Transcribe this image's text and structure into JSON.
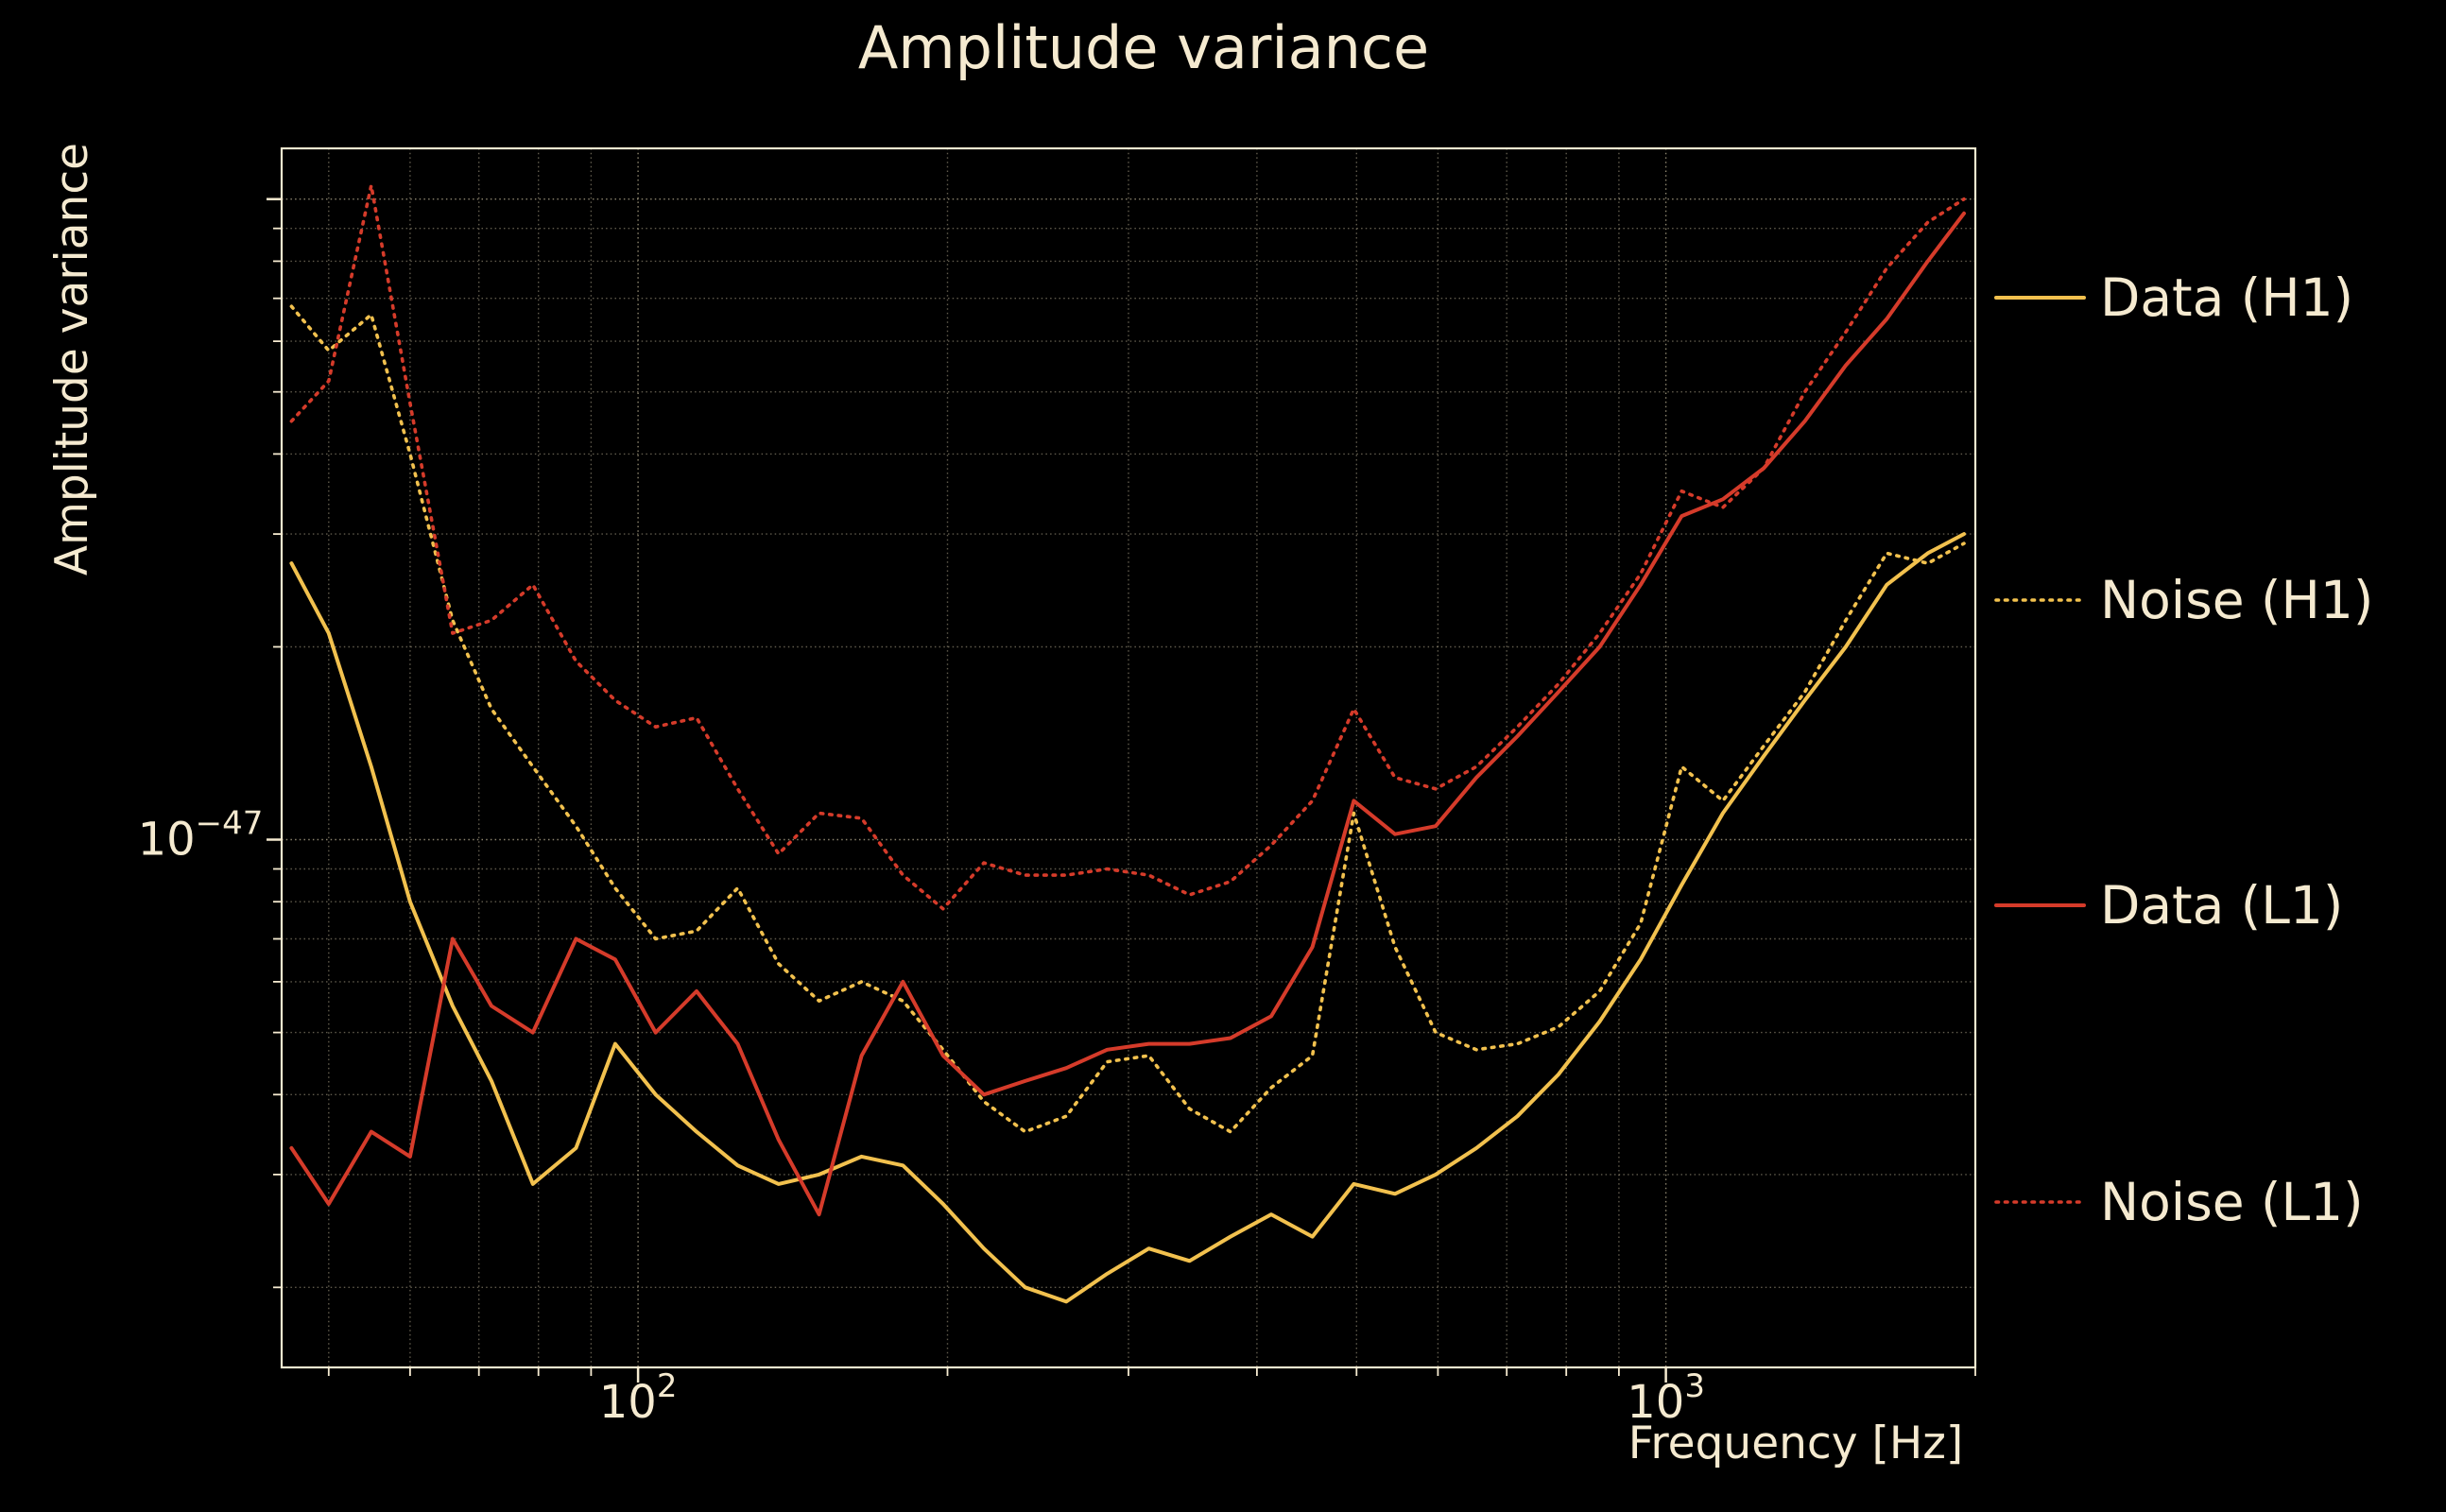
{
  "colors": {
    "background": "#000000",
    "text": "#f5ead0",
    "grid": "#d8cbaa",
    "gold": "#f2c14e",
    "red": "#d53b2a"
  },
  "chart_data": {
    "type": "line",
    "title": "Amplitude variance",
    "xlabel": "Frequency [Hz]",
    "ylabel": "Amplitude variance",
    "x_scale": "log",
    "y_scale": "log",
    "grid": "on",
    "legend_position": "right-outside",
    "xlim": [
      45,
      2000
    ],
    "ylim": [
      1.5e-48,
      1.2e-46
    ],
    "x_ticks": [
      {
        "value": 100,
        "mantissa": "10",
        "exp": "2"
      },
      {
        "value": 1000,
        "mantissa": "10",
        "exp": "3"
      }
    ],
    "y_ticks": [
      {
        "value": 1e-47,
        "mantissa": "10",
        "exp": "−47"
      }
    ],
    "value_scale": 1e-48,
    "x": [
      46,
      50,
      55,
      60,
      66,
      72,
      79,
      87,
      95,
      104,
      114,
      125,
      137,
      150,
      165,
      181,
      198,
      217,
      238,
      261,
      286,
      314,
      344,
      377,
      413,
      453,
      497,
      545,
      597,
      654,
      717,
      786,
      862,
      945,
      1036,
      1136,
      1245,
      1365,
      1496,
      1640,
      1798,
      1950
    ],
    "series": [
      {
        "name": "Data (H1)",
        "color": "gold",
        "style": "solid",
        "values": [
          27,
          21,
          13,
          8,
          5.5,
          4.2,
          2.9,
          3.3,
          4.8,
          4.0,
          3.5,
          3.1,
          2.9,
          3.0,
          3.2,
          3.1,
          2.7,
          2.3,
          2.0,
          1.9,
          2.1,
          2.3,
          2.2,
          2.4,
          2.6,
          2.4,
          2.9,
          2.8,
          3.0,
          3.3,
          3.7,
          4.3,
          5.2,
          6.5,
          8.5,
          11,
          13.5,
          16.5,
          20,
          25,
          28,
          30
        ]
      },
      {
        "name": "Noise (H1)",
        "color": "gold",
        "style": "dotted",
        "values": [
          68,
          58,
          66,
          40,
          22,
          16,
          13,
          10.5,
          8.4,
          7.0,
          7.2,
          8.4,
          6.4,
          5.6,
          6.0,
          5.6,
          4.7,
          3.9,
          3.5,
          3.7,
          4.5,
          4.6,
          3.8,
          3.5,
          4.1,
          4.6,
          11,
          6.8,
          5.0,
          4.7,
          4.8,
          5.1,
          5.8,
          7.4,
          13,
          11.5,
          14,
          17,
          22,
          28,
          27,
          29
        ]
      },
      {
        "name": "Data (L1)",
        "color": "red",
        "style": "solid",
        "values": [
          3.3,
          2.7,
          3.5,
          3.2,
          7.0,
          5.5,
          5.0,
          7.0,
          6.5,
          5.0,
          5.8,
          4.8,
          3.4,
          2.6,
          4.6,
          6.0,
          4.6,
          4.0,
          4.2,
          4.4,
          4.7,
          4.8,
          4.8,
          4.9,
          5.3,
          6.8,
          11.5,
          10.2,
          10.5,
          12.5,
          14.5,
          17,
          20,
          25,
          32,
          34,
          38,
          45,
          55,
          65,
          80,
          95
        ]
      },
      {
        "name": "Noise (L1)",
        "color": "red",
        "style": "dotted",
        "values": [
          45,
          52,
          105,
          48,
          21,
          22,
          25,
          19,
          16.5,
          15,
          15.5,
          12,
          9.5,
          11,
          10.8,
          8.8,
          7.8,
          9.2,
          8.8,
          8.8,
          9.0,
          8.8,
          8.2,
          8.6,
          9.8,
          11.5,
          16,
          12.5,
          12,
          13,
          15,
          17.5,
          21,
          26,
          35,
          33,
          38,
          50,
          62,
          78,
          92,
          100
        ]
      }
    ]
  }
}
